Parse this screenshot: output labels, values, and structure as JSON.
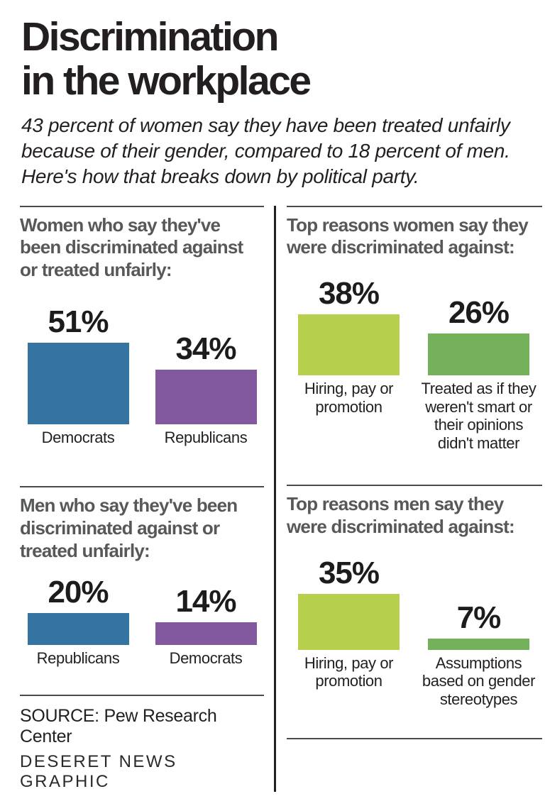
{
  "header": {
    "title_line1": "Discrimination",
    "title_line2": "in the workplace",
    "subtitle": "43 percent of women say they have been treated unfairly because of their gender, compared to 18 percent of men. Here's how that breaks down by political party."
  },
  "colors": {
    "bar_blue": "#3573a3",
    "bar_purple": "#82589f",
    "bar_yellow_green": "#b6cf4c",
    "bar_green": "#75b15a",
    "heading_gray": "#57585a",
    "text_black": "#231f20"
  },
  "chart_data": [
    {
      "type": "bar",
      "title": "Women who say they've been discriminated against or treated unfairly:",
      "categories": [
        "Democrats",
        "Republicans"
      ],
      "values": [
        51,
        34
      ],
      "value_labels": [
        "51%",
        "34%"
      ],
      "colors": [
        "#3573a3",
        "#82589f"
      ],
      "unit": "percent",
      "ylim": [
        0,
        55
      ],
      "grid": false,
      "legend": false,
      "data_labels_position": "above-bar"
    },
    {
      "type": "bar",
      "title": "Top reasons women say they were discriminated against:",
      "categories": [
        "Hiring, pay or promotion",
        "Treated as if they weren't smart or their opinions didn't matter"
      ],
      "values": [
        38,
        26
      ],
      "value_labels": [
        "38%",
        "26%"
      ],
      "colors": [
        "#b6cf4c",
        "#75b15a"
      ],
      "unit": "percent",
      "ylim": [
        0,
        40
      ],
      "grid": false,
      "legend": false,
      "data_labels_position": "above-bar"
    },
    {
      "type": "bar",
      "title": "Men who say they've been discriminated against or treated unfairly:",
      "categories": [
        "Republicans",
        "Democrats"
      ],
      "values": [
        20,
        14
      ],
      "value_labels": [
        "20%",
        "14%"
      ],
      "colors": [
        "#3573a3",
        "#82589f"
      ],
      "unit": "percent",
      "ylim": [
        0,
        55
      ],
      "grid": false,
      "legend": false,
      "data_labels_position": "above-bar"
    },
    {
      "type": "bar",
      "title": "Top reasons men say they were discriminated against:",
      "categories": [
        "Hiring, pay or promotion",
        "Assumptions based on gender stereotypes"
      ],
      "values": [
        35,
        7
      ],
      "value_labels": [
        "35%",
        "7%"
      ],
      "colors": [
        "#b6cf4c",
        "#75b15a"
      ],
      "unit": "percent",
      "ylim": [
        0,
        40
      ],
      "grid": false,
      "legend": false,
      "data_labels_position": "above-bar"
    }
  ],
  "footer": {
    "source": "SOURCE: Pew Research Center",
    "credit": "DESERET NEWS GRAPHIC"
  }
}
